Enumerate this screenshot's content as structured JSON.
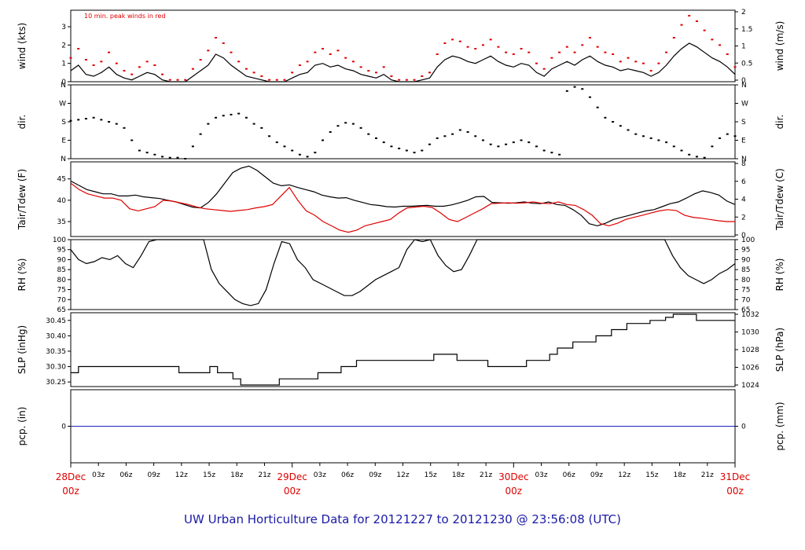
{
  "footer": "UW Urban Horticulture Data for 20121227  to  20121230 @ 23:56:08  (UTC)",
  "colors": {
    "primary": "#000000",
    "red": "#e00000",
    "blue": "#2020c0",
    "footer": "#1a1aa8"
  },
  "chart_data": {
    "type": "line",
    "x_ticks": [
      "03z",
      "06z",
      "09z",
      "12z",
      "15z",
      "18z",
      "21z",
      "03z",
      "06z",
      "09z",
      "12z",
      "15z",
      "18z",
      "21z",
      "03z",
      "06z",
      "09z",
      "12z",
      "15z",
      "18z",
      "21z"
    ],
    "day_labels": [
      {
        "date": "28Dec",
        "hour": "00z"
      },
      {
        "date": "29Dec",
        "hour": "00z"
      },
      {
        "date": "30Dec",
        "hour": "00z"
      },
      {
        "date": "31Dec",
        "hour": "00z"
      }
    ],
    "panels": [
      {
        "id": "wind",
        "left_label": "wind (kts)",
        "right_label": "wind (m/s)",
        "left_ticks": [
          "0",
          "1",
          "2",
          "3"
        ],
        "left_range": [
          0,
          3.9
        ],
        "right_ticks": [
          "0",
          "0.5",
          "1",
          "1.5",
          "2"
        ],
        "note": "10 min. peak winds in red",
        "series": [
          {
            "kind": "wind-speed",
            "color": "#000000",
            "values": [
              0.6,
              0.9,
              0.4,
              0.3,
              0.5,
              0.8,
              0.4,
              0.2,
              0.1,
              0.3,
              0.5,
              0.4,
              0.1,
              0,
              0,
              0,
              0.3,
              0.6,
              0.9,
              1.5,
              1.3,
              0.9,
              0.6,
              0.3,
              0.2,
              0.1,
              0,
              0,
              0,
              0.2,
              0.4,
              0.5,
              0.9,
              1,
              0.8,
              0.9,
              0.7,
              0.6,
              0.4,
              0.3,
              0.2,
              0.4,
              0.1,
              0,
              0,
              0,
              0.1,
              0.2,
              0.8,
              1.2,
              1.4,
              1.3,
              1.1,
              1.0,
              1.2,
              1.4,
              1.1,
              0.9,
              0.8,
              1,
              0.9,
              0.5,
              0.3,
              0.7,
              0.9,
              1.1,
              0.9,
              1.2,
              1.4,
              1.1,
              0.9,
              0.8,
              0.6,
              0.7,
              0.6,
              0.5,
              0.3,
              0.5,
              0.9,
              1.4,
              1.8,
              2.1,
              1.9,
              1.6,
              1.3,
              1.1,
              0.8,
              0.4
            ]
          },
          {
            "kind": "wind-peak",
            "color": "#e00000",
            "values": [
              1.3,
              1.8,
              1.2,
              0.9,
              1.1,
              1.6,
              1.0,
              0.6,
              0.4,
              0.8,
              1.1,
              0.9,
              0.4,
              0.1,
              0.1,
              0.1,
              0.7,
              1.2,
              1.7,
              2.4,
              2.1,
              1.6,
              1.1,
              0.7,
              0.5,
              0.3,
              0.1,
              0.1,
              0.1,
              0.5,
              0.9,
              1.1,
              1.6,
              1.8,
              1.5,
              1.7,
              1.3,
              1.1,
              0.8,
              0.6,
              0.5,
              0.8,
              0.3,
              0.1,
              0.1,
              0.1,
              0.3,
              0.5,
              1.5,
              2.1,
              2.3,
              2.2,
              1.9,
              1.8,
              2.0,
              2.3,
              1.9,
              1.6,
              1.5,
              1.8,
              1.6,
              1.0,
              0.7,
              1.3,
              1.6,
              1.9,
              1.6,
              2.0,
              2.4,
              1.9,
              1.6,
              1.5,
              1.1,
              1.3,
              1.1,
              1.0,
              0.6,
              1.0,
              1.6,
              2.4,
              3.1,
              3.6,
              3.3,
              2.8,
              2.3,
              2.0,
              1.5,
              0.8
            ]
          }
        ]
      },
      {
        "id": "dir",
        "left_label": "dir.",
        "right_label": "dir.",
        "left_ticks": [
          "N",
          "E",
          "S",
          "W",
          "N"
        ],
        "left_range": [
          0,
          360
        ],
        "right_ticks": [
          "N",
          "E",
          "S",
          "W",
          "N"
        ],
        "series": [
          {
            "kind": "wind-direction",
            "color": "#000000",
            "values": [
              185,
              190,
              195,
              200,
              190,
              180,
              170,
              150,
              90,
              40,
              30,
              20,
              10,
              5,
              5,
              0,
              60,
              120,
              170,
              200,
              210,
              215,
              220,
              200,
              170,
              150,
              110,
              80,
              60,
              40,
              20,
              10,
              30,
              90,
              130,
              160,
              175,
              170,
              150,
              120,
              100,
              80,
              60,
              50,
              40,
              30,
              40,
              70,
              100,
              110,
              120,
              140,
              130,
              110,
              90,
              70,
              60,
              70,
              80,
              90,
              80,
              60,
              40,
              30,
              20,
              330,
              350,
              340,
              300,
              250,
              200,
              180,
              160,
              140,
              120,
              110,
              100,
              90,
              80,
              60,
              40,
              20,
              10,
              5,
              60,
              100,
              120,
              110
            ]
          }
        ]
      },
      {
        "id": "temp",
        "left_label": "Tair/Tdew (F)",
        "right_label": "Tair/Tdew (C)",
        "left_ticks": [
          "35",
          "40",
          "45"
        ],
        "left_range": [
          31.5,
          49
        ],
        "right_ticks": [
          "0",
          "2",
          "4",
          "6",
          "8"
        ],
        "series": [
          {
            "kind": "air-temperature",
            "color": "#000000",
            "values": [
              44.5,
              43.5,
              42.5,
              42,
              41.5,
              41.5,
              41,
              41,
              41.2,
              40.8,
              40.6,
              40.4,
              40,
              39.6,
              39,
              38.4,
              38.2,
              39.5,
              41.5,
              44,
              46.5,
              47.5,
              48,
              47,
              45.5,
              44,
              43.4,
              43.6,
              43,
              42.5,
              42,
              41.2,
              40.8,
              40.5,
              40.6,
              40,
              39.5,
              39,
              38.8,
              38.5,
              38.4,
              38.6,
              38.6,
              38.7,
              38.8,
              38.6,
              38.6,
              38.9,
              39.4,
              40,
              40.8,
              40.9,
              39.5,
              39.4,
              39.3,
              39.4,
              39.6,
              39.3,
              39.2,
              39.6,
              39,
              38.8,
              37.8,
              36.5,
              34.5,
              34,
              34.6,
              35.5,
              36,
              36.5,
              37,
              37.5,
              37.8,
              38.5,
              39.2,
              39.6,
              40.5,
              41.5,
              42.2,
              41.8,
              41.2,
              39.8,
              39
            ]
          },
          {
            "kind": "dew-point",
            "color": "#e00000",
            "values": [
              44,
              42.5,
              41.5,
              41,
              40.5,
              40.5,
              40,
              38,
              37.5,
              38,
              38.5,
              40,
              39.8,
              39.4,
              39,
              38.4,
              38,
              37.8,
              37.6,
              37.4,
              37.6,
              37.8,
              38.2,
              38.5,
              39,
              41,
              43,
              40,
              37.5,
              36.5,
              35,
              34,
              33,
              32.5,
              33,
              34,
              34.5,
              35,
              35.5,
              37,
              38.2,
              38.4,
              38.6,
              38.3,
              37,
              35.5,
              35,
              36,
              37,
              38,
              39.2,
              39.3,
              39.4,
              39.3,
              39.4,
              39.6,
              39.3,
              39.2,
              39.6,
              39,
              38.8,
              37.8,
              36.5,
              34.5,
              34,
              34.6,
              35.5,
              36,
              36.5,
              37,
              37.5,
              37.8,
              37.6,
              36.5,
              36,
              35.8,
              35.5,
              35.2,
              35,
              35
            ]
          }
        ]
      },
      {
        "id": "rh",
        "left_label": "RH (%)",
        "right_label": "RH (%)",
        "left_ticks": [
          "65",
          "70",
          "75",
          "80",
          "85",
          "90",
          "95",
          "100"
        ],
        "left_range": [
          65,
          100
        ],
        "right_ticks": [
          "65",
          "70",
          "75",
          "80",
          "85",
          "90",
          "95",
          "100"
        ],
        "series": [
          {
            "kind": "relative-humidity",
            "color": "#000000",
            "values": [
              95,
              90,
              88,
              89,
              91,
              90,
              92,
              88,
              86,
              92,
              99,
              100,
              100,
              100,
              100,
              100,
              100,
              100,
              85,
              78,
              74,
              70,
              68,
              67,
              68,
              75,
              88,
              99,
              98,
              90,
              86,
              80,
              78,
              76,
              74,
              72,
              72,
              74,
              77,
              80,
              82,
              84,
              86,
              95,
              100,
              99,
              100,
              92,
              87,
              84,
              85,
              92,
              100,
              100,
              100,
              100,
              100,
              100,
              100,
              100,
              100,
              100,
              100,
              100,
              100,
              100,
              100,
              100,
              100,
              100,
              100,
              100,
              100,
              100,
              100,
              100,
              100,
              92,
              86,
              82,
              80,
              78,
              80,
              83,
              85,
              88
            ]
          }
        ]
      },
      {
        "id": "slp",
        "left_label": "SLP (inHg)",
        "right_label": "SLP (hPa)",
        "left_ticks": [
          "30.25",
          "30.30",
          "30.35",
          "30.40",
          "30.45"
        ],
        "left_range": [
          30.235,
          30.475
        ],
        "right_ticks": [
          "1024",
          "1026",
          "1028",
          "1030",
          "1032"
        ],
        "series": [
          {
            "kind": "sea-level-pressure",
            "color": "#000000",
            "step": true,
            "values": [
              30.28,
              30.3,
              30.3,
              30.3,
              30.3,
              30.3,
              30.3,
              30.3,
              30.3,
              30.3,
              30.3,
              30.3,
              30.3,
              30.3,
              30.28,
              30.28,
              30.28,
              30.28,
              30.3,
              30.28,
              30.28,
              30.26,
              30.24,
              30.24,
              30.24,
              30.24,
              30.24,
              30.26,
              30.26,
              30.26,
              30.26,
              30.26,
              30.28,
              30.28,
              30.28,
              30.3,
              30.3,
              30.32,
              30.32,
              30.32,
              30.32,
              30.32,
              30.32,
              30.32,
              30.32,
              30.32,
              30.32,
              30.34,
              30.34,
              30.34,
              30.32,
              30.32,
              30.32,
              30.32,
              30.3,
              30.3,
              30.3,
              30.3,
              30.3,
              30.32,
              30.32,
              30.32,
              30.34,
              30.36,
              30.36,
              30.38,
              30.38,
              30.38,
              30.4,
              30.4,
              30.42,
              30.42,
              30.44,
              30.44,
              30.44,
              30.45,
              30.45,
              30.46,
              30.47,
              30.47,
              30.47,
              30.45,
              30.45,
              30.45,
              30.45,
              30.45,
              30.45
            ]
          }
        ]
      },
      {
        "id": "pcp",
        "left_label": "pcp. (in)",
        "right_label": "pcp. (mm)",
        "left_ticks": [
          "0"
        ],
        "left_range": [
          -1,
          1
        ],
        "right_ticks": [
          "0"
        ],
        "series": [
          {
            "kind": "precipitation",
            "color": "#2020c0",
            "values": [
              0,
              0
            ]
          }
        ]
      }
    ]
  }
}
